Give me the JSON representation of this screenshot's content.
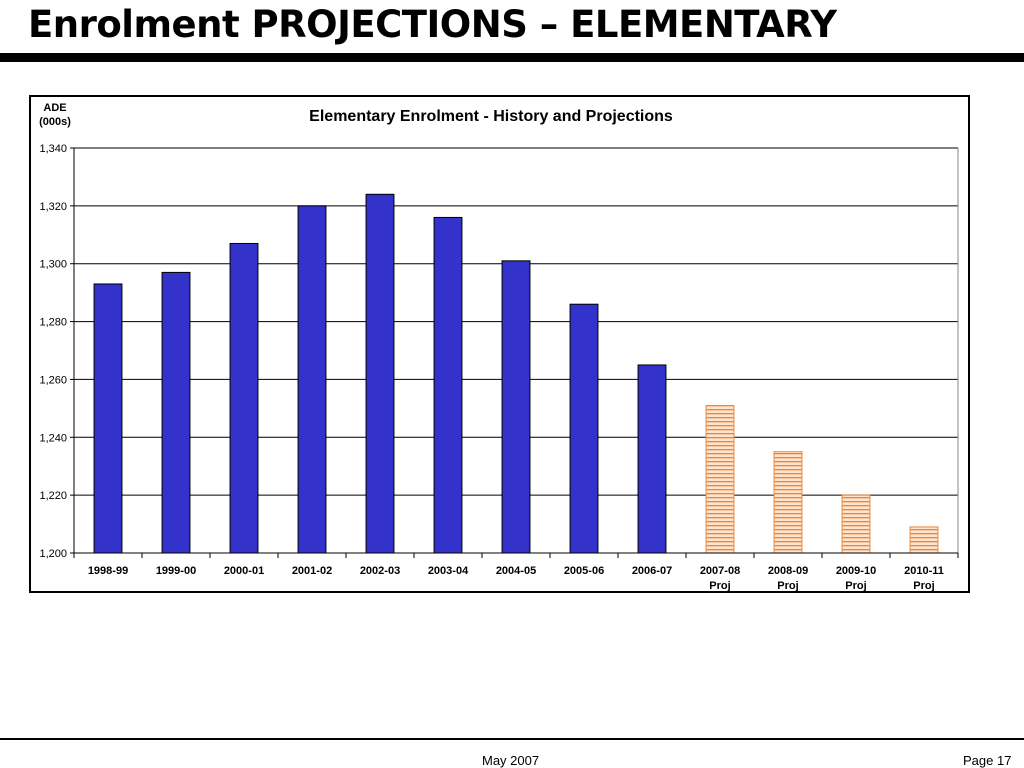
{
  "slide": {
    "title": "Enrolment PROJECTIONS – ELEMENTARY"
  },
  "footer": {
    "date": "May 2007",
    "page": "Page 17"
  },
  "colors": {
    "history": "#3333cc",
    "projection_fill": "#ffe3cc",
    "projection_stripe": "#e8873a"
  },
  "chart_data": {
    "type": "bar",
    "title": "Elementary Enrolment - History and Projections",
    "ylabel": [
      "ADE",
      "(000s)"
    ],
    "ylim": [
      1200,
      1340
    ],
    "yticks": [
      {
        "value": 1200,
        "label": "1,200"
      },
      {
        "value": 1220,
        "label": "1,220"
      },
      {
        "value": 1240,
        "label": "1,240"
      },
      {
        "value": 1260,
        "label": "1,260"
      },
      {
        "value": 1280,
        "label": "1,280"
      },
      {
        "value": 1300,
        "label": "1,300"
      },
      {
        "value": 1320,
        "label": "1,320"
      },
      {
        "value": 1340,
        "label": "1,340"
      }
    ],
    "grid": true,
    "legend": "none",
    "categories": [
      [
        "1998-99"
      ],
      [
        "1999-00"
      ],
      [
        "2000-01"
      ],
      [
        "2001-02"
      ],
      [
        "2002-03"
      ],
      [
        "2003-04"
      ],
      [
        "2004-05"
      ],
      [
        "2005-06"
      ],
      [
        "2006-07"
      ],
      [
        "2007-08",
        "Proj"
      ],
      [
        "2008-09",
        "Proj"
      ],
      [
        "2009-10",
        "Proj"
      ],
      [
        "2010-11",
        "Proj"
      ]
    ],
    "values": [
      1293,
      1297,
      1307,
      1320,
      1324,
      1316,
      1301,
      1286,
      1265,
      1251,
      1235,
      1220,
      1209
    ],
    "projected": [
      false,
      false,
      false,
      false,
      false,
      false,
      false,
      false,
      false,
      true,
      true,
      true,
      true
    ]
  }
}
